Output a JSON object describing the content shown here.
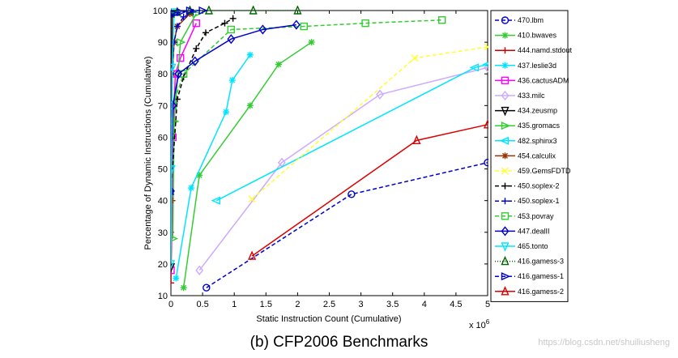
{
  "caption": "(b)    CFP2006 Benchmarks",
  "watermark": "https://blog.csdn.net/shuiliusheng",
  "chart_data": {
    "type": "line",
    "title": "",
    "xlabel": "Static Instruction Count (Cumulative)",
    "ylabel": "Percentage of Dynamic Instructions (Cumulative)",
    "x_multiplier_label": "x 10",
    "x_multiplier_exp": "6",
    "xlim": [
      0,
      5
    ],
    "ylim": [
      10,
      100
    ],
    "xticks": [
      "0",
      "0.5",
      "1",
      "1.5",
      "2",
      "2.5",
      "3",
      "3.5",
      "4",
      "4.5",
      "5"
    ],
    "yticks": [
      "10",
      "20",
      "30",
      "40",
      "50",
      "60",
      "70",
      "80",
      "90",
      "100"
    ],
    "grid": false,
    "legend_position": "right",
    "series": [
      {
        "name": "470.lbm",
        "color": "#0000cc",
        "dash": "5,3",
        "marker": "circle",
        "x": [
          0.56,
          2.85,
          5.0
        ],
        "y": [
          12.5,
          42,
          52
        ]
      },
      {
        "name": "410.bwaves",
        "color": "#33cc33",
        "dash": "",
        "marker": "star",
        "x": [
          0.2,
          0.45,
          1.25,
          1.7,
          2.22
        ],
        "y": [
          12.5,
          48,
          70,
          83,
          90
        ]
      },
      {
        "name": "444.namd.stdout",
        "color": "#cc0000",
        "dash": "",
        "marker": "plus",
        "x": [
          0.0,
          0.02,
          0.05
        ],
        "y": [
          14,
          40,
          65
        ]
      },
      {
        "name": "437.leslie3d",
        "color": "#00e5ff",
        "dash": "",
        "marker": "star",
        "x": [
          0.08,
          0.32,
          0.87,
          0.97,
          1.25
        ],
        "y": [
          15.5,
          44,
          68,
          78,
          86
        ]
      },
      {
        "name": "436.cactusADM",
        "color": "#ff00ff",
        "dash": "",
        "marker": "square",
        "x": [
          0.0,
          0.03,
          0.07,
          0.15,
          0.4
        ],
        "y": [
          18,
          60,
          80,
          85,
          96
        ]
      },
      {
        "name": "433.milc",
        "color": "#ccaaff",
        "dash": "",
        "marker": "diamond",
        "x": [
          0.45,
          1.75,
          3.3,
          5.0
        ],
        "y": [
          18,
          52,
          73.5,
          82
        ]
      },
      {
        "name": "434.zeusmp",
        "color": "#000000",
        "dash": "",
        "marker": "triangle-down",
        "x": [
          0.0,
          0.01,
          0.02
        ],
        "y": [
          19,
          60,
          99
        ]
      },
      {
        "name": "435.gromacs",
        "color": "#33cc33",
        "dash": "",
        "marker": "triangle-right",
        "x": [
          0.03,
          0.05,
          0.15,
          0.4
        ],
        "y": [
          28,
          65,
          90,
          99
        ]
      },
      {
        "name": "482.sphinx3",
        "color": "#00e5ff",
        "dash": "",
        "marker": "triangle-left",
        "x": [
          0.72,
          4.8,
          5.0
        ],
        "y": [
          40,
          82,
          83
        ]
      },
      {
        "name": "454.calculix",
        "color": "#993300",
        "dash": "",
        "marker": "star",
        "x": [
          0.0,
          0.02,
          0.05,
          0.1,
          0.3
        ],
        "y": [
          40,
          80,
          90,
          95,
          99
        ]
      },
      {
        "name": "459.GemsFDTD",
        "color": "#ffff33",
        "dash": "5,3",
        "marker": "x",
        "x": [
          1.28,
          3.85,
          5.0
        ],
        "y": [
          40.5,
          85,
          88.5
        ]
      },
      {
        "name": "450.soplex-2",
        "color": "#000000",
        "dash": "5,3",
        "marker": "plus",
        "x": [
          0.0,
          0.1,
          0.2,
          0.4,
          0.55,
          0.85,
          0.98
        ],
        "y": [
          43,
          72,
          79,
          88,
          93,
          96,
          97.5
        ]
      },
      {
        "name": "450.soplex-1",
        "color": "#0000cc",
        "dash": "5,3",
        "marker": "plus",
        "x": [
          0.0,
          0.02,
          0.05,
          0.1,
          0.2,
          0.35
        ],
        "y": [
          42,
          80,
          90,
          95,
          98,
          99.5
        ]
      },
      {
        "name": "453.povray",
        "color": "#33cc33",
        "dash": "5,3",
        "marker": "square",
        "x": [
          0.03,
          0.2,
          0.95,
          2.1,
          3.07,
          4.28
        ],
        "y": [
          70,
          80,
          94,
          95,
          96,
          97
        ]
      },
      {
        "name": "447.dealII",
        "color": "#0000cc",
        "dash": "",
        "marker": "diamond",
        "x": [
          0.0,
          0.03,
          0.12,
          0.38,
          0.95,
          1.45,
          1.98
        ],
        "y": [
          43,
          70,
          80,
          84,
          91,
          94,
          95.5
        ]
      },
      {
        "name": "465.tonto",
        "color": "#00e5ff",
        "dash": "",
        "marker": "triangle-down",
        "x": [
          0.0,
          0.01,
          0.02,
          0.05
        ],
        "y": [
          20,
          50,
          82,
          99.5
        ]
      },
      {
        "name": "416.gamess-3",
        "color": "#006600",
        "dash": "1,2",
        "marker": "triangle-up",
        "x": [
          0.0,
          0.1,
          0.3,
          0.6,
          1.3,
          2.0
        ],
        "y": [
          99,
          99.5,
          100,
          100,
          100,
          100
        ]
      },
      {
        "name": "416.gamess-1",
        "color": "#0000cc",
        "dash": "5,3",
        "marker": "triangle-right",
        "x": [
          0.0,
          0.05,
          0.15,
          0.3,
          0.5
        ],
        "y": [
          98.5,
          99,
          99.5,
          100,
          100
        ]
      },
      {
        "name": "416.gamess-2",
        "color": "#dd0000",
        "dash": "",
        "marker": "triangle-up",
        "x": [
          1.28,
          3.88,
          5.0
        ],
        "y": [
          22.5,
          59,
          64
        ]
      }
    ]
  }
}
